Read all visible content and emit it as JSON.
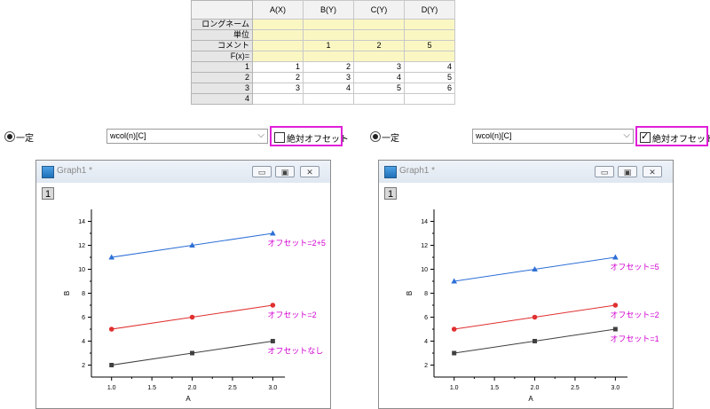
{
  "worksheet": {
    "columns": [
      "A(X)",
      "B(Y)",
      "C(Y)",
      "D(Y)"
    ],
    "meta_rows": [
      {
        "label": "ロングネーム",
        "cells": [
          "",
          "",
          "",
          ""
        ]
      },
      {
        "label": "単位",
        "cells": [
          "",
          "",
          "",
          ""
        ]
      },
      {
        "label": "コメント",
        "cells": [
          "",
          "1",
          "2",
          "5"
        ]
      },
      {
        "label": "F(x)=",
        "cells": [
          "",
          "",
          "",
          ""
        ]
      }
    ],
    "data_rows": [
      {
        "label": "1",
        "cells": [
          "1",
          "2",
          "3",
          "4"
        ]
      },
      {
        "label": "2",
        "cells": [
          "2",
          "3",
          "4",
          "5"
        ]
      },
      {
        "label": "3",
        "cells": [
          "3",
          "4",
          "5",
          "6"
        ]
      },
      {
        "label": "4",
        "cells": [
          "",
          "",
          "",
          ""
        ]
      }
    ]
  },
  "options_left": {
    "radio_label": "一定",
    "combo_value": "wcol(n)[C]",
    "checkbox_label": "絶対オフセット",
    "checked": false
  },
  "options_right": {
    "radio_label": "一定",
    "combo_value": "wcol(n)[C]",
    "checkbox_label": "絶対オフセット",
    "checked": true
  },
  "graphs": [
    {
      "window_title": "Graph1 *",
      "layer_label": "1",
      "chart_data": {
        "type": "line",
        "xlabel": "A",
        "ylabel": "B",
        "xlim": [
          0.75,
          3.15
        ],
        "ylim": [
          1,
          15
        ],
        "xticks": [
          "1.0",
          "1.5",
          "2.0",
          "2.5",
          "3.0"
        ],
        "yticks": [
          "2",
          "4",
          "6",
          "8",
          "10",
          "12",
          "14"
        ],
        "x": [
          1,
          2,
          3
        ],
        "series": [
          {
            "values": [
              2,
              3,
              4
            ],
            "color": "#404040",
            "marker": "square",
            "annotation": "オフセットなし"
          },
          {
            "values": [
              5,
              6,
              7
            ],
            "color": "#e03030",
            "marker": "circle",
            "annotation": "オフセット=2"
          },
          {
            "values": [
              11,
              12,
              13
            ],
            "color": "#2d6fd6",
            "marker": "triangle",
            "annotation": "オフセット=2+5"
          }
        ]
      }
    },
    {
      "window_title": "Graph1 *",
      "layer_label": "1",
      "chart_data": {
        "type": "line",
        "xlabel": "A",
        "ylabel": "B",
        "xlim": [
          0.75,
          3.15
        ],
        "ylim": [
          1,
          15
        ],
        "xticks": [
          "1.0",
          "1.5",
          "2.0",
          "2.5",
          "3.0"
        ],
        "yticks": [
          "2",
          "4",
          "6",
          "8",
          "10",
          "12",
          "14"
        ],
        "x": [
          1,
          2,
          3
        ],
        "series": [
          {
            "values": [
              3,
              4,
              5
            ],
            "color": "#404040",
            "marker": "square",
            "annotation": "オフセット=1"
          },
          {
            "values": [
              5,
              6,
              7
            ],
            "color": "#e03030",
            "marker": "circle",
            "annotation": "オフセット=2"
          },
          {
            "values": [
              9,
              10,
              11
            ],
            "color": "#2d6fd6",
            "marker": "triangle",
            "annotation": "オフセット=5"
          }
        ]
      }
    }
  ],
  "annotation_color": "#d100d1"
}
